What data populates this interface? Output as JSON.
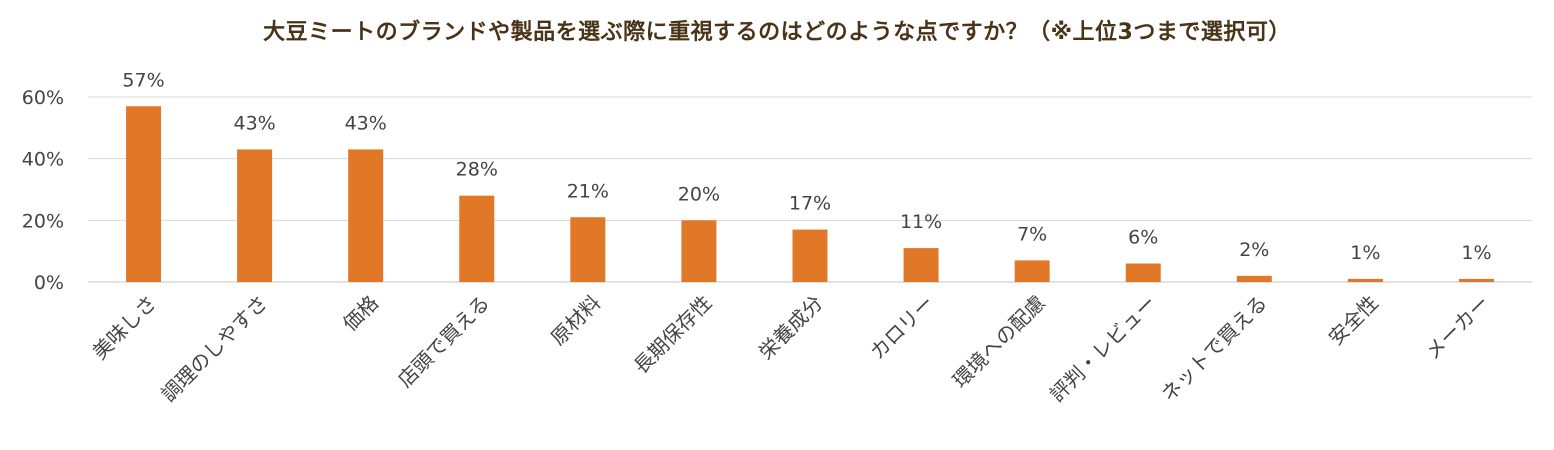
{
  "chart_data": {
    "type": "bar",
    "title": "大豆ミートのブランドや製品を選ぶ際に重視するのはどのような点ですか？（※上位3つまで選択可）",
    "xlabel": "",
    "ylabel": "",
    "categories": [
      "美味しさ",
      "調理のしやすさ",
      "価格",
      "店頭で買える",
      "原材料",
      "長期保存性",
      "栄養成分",
      "カロリー",
      "環境への配慮",
      "評判・レビュー",
      "ネットで買える",
      "安全性",
      "メーカー"
    ],
    "values": [
      57,
      43,
      43,
      28,
      21,
      20,
      17,
      11,
      7,
      6,
      2,
      1,
      1
    ],
    "data_labels": [
      "57%",
      "43%",
      "43%",
      "28%",
      "21%",
      "20%",
      "17%",
      "11%",
      "7%",
      "6%",
      "2%",
      "1%",
      "1%"
    ],
    "ylim": [
      0,
      60
    ],
    "yticks": [
      0,
      20,
      40,
      60
    ],
    "ytick_labels": [
      "0%",
      "20%",
      "40%",
      "60%"
    ],
    "grid": true,
    "legend": "none",
    "bar_color": "#E07828",
    "grid_color": "#D9D9D9"
  }
}
